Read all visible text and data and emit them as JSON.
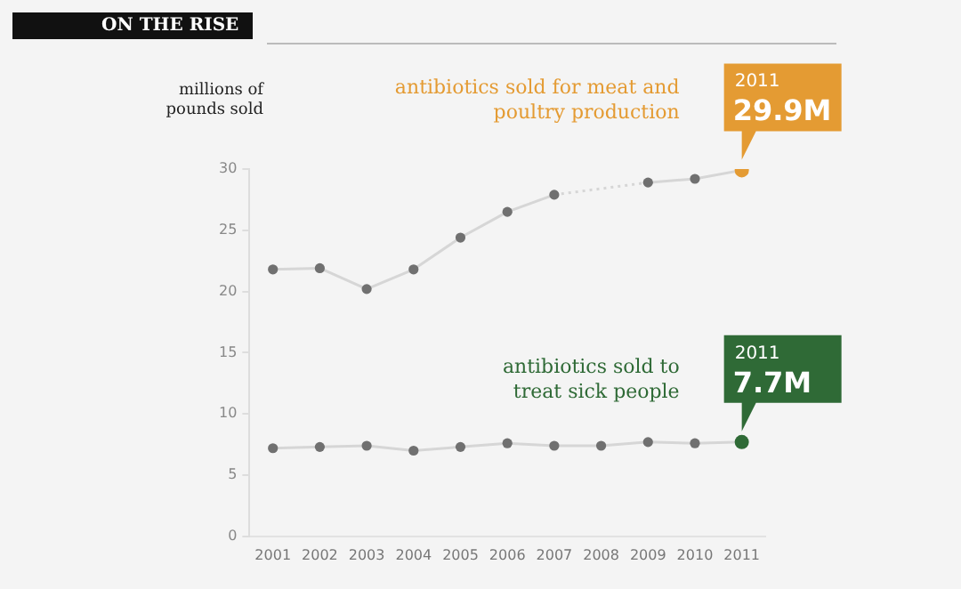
{
  "chart_data": {
    "type": "line",
    "title": "ON THE RISE",
    "ylabel": "millions of pounds sold",
    "categories": [
      "2001",
      "2002",
      "2003",
      "2004",
      "2005",
      "2006",
      "2007",
      "2008",
      "2009",
      "2010",
      "2011"
    ],
    "series": [
      {
        "name": "antibiotics sold for meat and poultry production",
        "color": "#d6d6d6",
        "values": [
          21.8,
          21.9,
          20.2,
          21.8,
          24.4,
          26.5,
          27.9,
          null,
          28.9,
          29.2,
          29.9
        ],
        "colors": [
          "#707070",
          "#707070",
          "#707070",
          "#707070",
          "#707070",
          "#707070",
          "#707070",
          "#707070",
          "#707070",
          "#707070",
          "#e49b33"
        ]
      },
      {
        "name": "antibiotics sold to treat sick people",
        "color": "#d6d6d6",
        "values": [
          7.2,
          7.3,
          7.4,
          7.0,
          7.3,
          7.6,
          7.4,
          7.4,
          7.7,
          7.6,
          7.7
        ],
        "colors": [
          "#707070",
          "#707070",
          "#707070",
          "#707070",
          "#707070",
          "#707070",
          "#707070",
          "#707070",
          "#707070",
          "#707070",
          "#2f6a36"
        ]
      }
    ],
    "annotations": [
      {
        "text": "2011 29.9M",
        "x": "2011",
        "y": 29.9
      },
      {
        "text": "2011 7.7M",
        "x": "2011",
        "y": 7.7
      }
    ],
    "ylim": [
      0,
      30
    ],
    "yticks": [
      0,
      5,
      10,
      15,
      20,
      25,
      30
    ],
    "grid": false,
    "legend": false,
    "marker": "circle",
    "line_style": "solid"
  }
}
